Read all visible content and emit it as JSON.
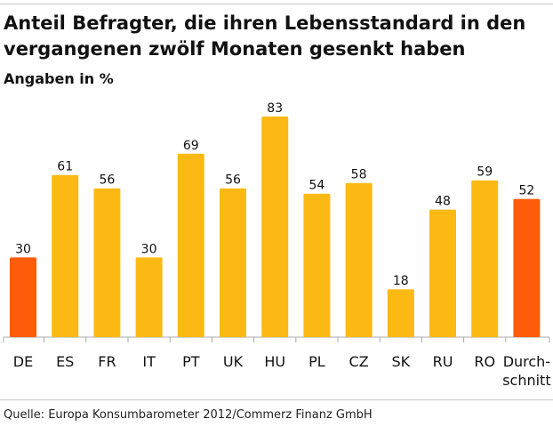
{
  "chart_data": {
    "type": "bar",
    "title": "Anteil Befragter, die ihren Lebensstandard in den vergangenen zwölf Monaten gesenkt haben",
    "subtitle": "Angaben in %",
    "categories": [
      "DE",
      "ES",
      "FR",
      "IT",
      "PT",
      "UK",
      "HU",
      "PL",
      "CZ",
      "SK",
      "RU",
      "RO",
      "Durch-\nschnitt"
    ],
    "values": [
      30,
      61,
      56,
      30,
      69,
      56,
      83,
      54,
      58,
      18,
      48,
      59,
      52
    ],
    "highlighted": [
      "DE",
      "Durch-\nschnitt"
    ],
    "xlabel": "",
    "ylabel": "",
    "ylim": [
      0,
      83
    ],
    "grid": false,
    "colors": {
      "bar": "#fdb913",
      "highlight": "#fe5c0b",
      "axis": "#aaaaaa"
    },
    "source": "Quelle: Europa Konsumbarometer 2012/Commerz Finanz GmbH"
  }
}
